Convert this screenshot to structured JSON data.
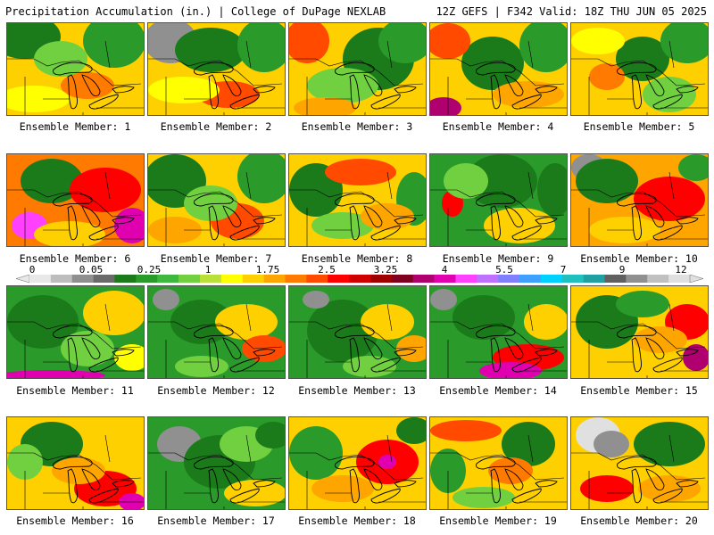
{
  "header": {
    "left_title": "Precipitation Accumulation (in.) | College of DuPage NEXLAB",
    "right_title": "12Z GEFS | F342 Valid: 18Z THU JUN 05 2025"
  },
  "colorbar": {
    "labels": [
      "0",
      "0.05",
      "0.25",
      "1",
      "1.75",
      "2.5",
      "3.25",
      "4",
      "5.5",
      "7",
      "9",
      "12"
    ],
    "colors": [
      "#e8e8e8",
      "#bdbdbd",
      "#8f8f8f",
      "#6a6a6a",
      "#1b7b1b",
      "#2a9a2a",
      "#3fb83f",
      "#70d040",
      "#b8e038",
      "#ffff00",
      "#ffd000",
      "#ffa500",
      "#ff7a00",
      "#ff4a00",
      "#ff0000",
      "#d00000",
      "#a00000",
      "#800020",
      "#b00070",
      "#e000b0",
      "#ff40ff",
      "#c070ff",
      "#8080ff",
      "#40a0ff",
      "#00d0ff",
      "#20c0c0",
      "#20a0a0",
      "#606060",
      "#909090",
      "#c0c0c0",
      "#e0e0e0"
    ]
  },
  "members": [
    {
      "label": "Ensemble Member: 1",
      "base": "#ffd000",
      "blobs": [
        [
          "#1b7b1b",
          20,
          15,
          40,
          25
        ],
        [
          "#2a9a2a",
          120,
          20,
          35,
          30
        ],
        [
          "#ff7a00",
          90,
          70,
          30,
          15
        ],
        [
          "#70d040",
          60,
          40,
          30,
          20
        ],
        [
          "#ffff00",
          30,
          85,
          40,
          15
        ]
      ]
    },
    {
      "label": "Ensemble Member: 2",
      "base": "#ffd000",
      "blobs": [
        [
          "#909090",
          25,
          20,
          30,
          25
        ],
        [
          "#1b7b1b",
          70,
          30,
          40,
          25
        ],
        [
          "#2a9a2a",
          130,
          25,
          30,
          30
        ],
        [
          "#ff4a00",
          90,
          80,
          35,
          15
        ],
        [
          "#ffff00",
          40,
          75,
          40,
          15
        ]
      ]
    },
    {
      "label": "Ensemble Member: 3",
      "base": "#ffd000",
      "blobs": [
        [
          "#ff4a00",
          20,
          20,
          25,
          25
        ],
        [
          "#1b7b1b",
          100,
          40,
          40,
          35
        ],
        [
          "#2a9a2a",
          130,
          20,
          30,
          25
        ],
        [
          "#70d040",
          60,
          70,
          40,
          20
        ],
        [
          "#ffa500",
          40,
          95,
          35,
          12
        ]
      ]
    },
    {
      "label": "Ensemble Member: 4",
      "base": "#ffd000",
      "blobs": [
        [
          "#1b7b1b",
          70,
          45,
          35,
          30
        ],
        [
          "#2a9a2a",
          130,
          25,
          30,
          30
        ],
        [
          "#ff4a00",
          20,
          20,
          25,
          20
        ],
        [
          "#b00070",
          15,
          95,
          20,
          12
        ],
        [
          "#ffa500",
          110,
          80,
          40,
          15
        ]
      ]
    },
    {
      "label": "Ensemble Member: 5",
      "base": "#ffd000",
      "blobs": [
        [
          "#1b7b1b",
          80,
          40,
          30,
          25
        ],
        [
          "#2a9a2a",
          130,
          20,
          30,
          25
        ],
        [
          "#ff7a00",
          40,
          60,
          20,
          15
        ],
        [
          "#70d040",
          110,
          80,
          30,
          20
        ],
        [
          "#ffff00",
          30,
          20,
          30,
          15
        ]
      ]
    },
    {
      "label": "Ensemble Member: 6",
      "base": "#ff7a00",
      "blobs": [
        [
          "#1b7b1b",
          50,
          30,
          35,
          25
        ],
        [
          "#ff0000",
          110,
          40,
          40,
          25
        ],
        [
          "#e000b0",
          140,
          80,
          20,
          20
        ],
        [
          "#ff40ff",
          25,
          80,
          20,
          15
        ],
        [
          "#ffd000",
          70,
          90,
          40,
          15
        ]
      ]
    },
    {
      "label": "Ensemble Member: 7",
      "base": "#ffd000",
      "blobs": [
        [
          "#1b7b1b",
          30,
          30,
          35,
          30
        ],
        [
          "#2a9a2a",
          130,
          25,
          30,
          30
        ],
        [
          "#ff4a00",
          100,
          75,
          30,
          20
        ],
        [
          "#70d040",
          70,
          55,
          30,
          20
        ],
        [
          "#ffa500",
          30,
          85,
          30,
          15
        ]
      ]
    },
    {
      "label": "Ensemble Member: 8",
      "base": "#ffd000",
      "blobs": [
        [
          "#1b7b1b",
          30,
          40,
          30,
          30
        ],
        [
          "#ff4a00",
          80,
          20,
          40,
          15
        ],
        [
          "#2a9a2a",
          140,
          50,
          20,
          30
        ],
        [
          "#70d040",
          60,
          80,
          35,
          15
        ],
        [
          "#ffa500",
          110,
          70,
          30,
          15
        ]
      ]
    },
    {
      "label": "Ensemble Member: 9",
      "base": "#2a9a2a",
      "blobs": [
        [
          "#1b7b1b",
          80,
          30,
          40,
          30
        ],
        [
          "#ff0000",
          25,
          55,
          12,
          15
        ],
        [
          "#ffd000",
          100,
          80,
          40,
          20
        ],
        [
          "#70d040",
          40,
          30,
          25,
          20
        ],
        [
          "#1b7b1b",
          140,
          40,
          20,
          30
        ]
      ]
    },
    {
      "label": "Ensemble Member: 10",
      "base": "#ffa500",
      "blobs": [
        [
          "#909090",
          20,
          15,
          20,
          15
        ],
        [
          "#1b7b1b",
          40,
          30,
          35,
          25
        ],
        [
          "#ff0000",
          110,
          50,
          40,
          25
        ],
        [
          "#2a9a2a",
          140,
          15,
          20,
          15
        ],
        [
          "#ffd000",
          60,
          85,
          40,
          15
        ]
      ]
    },
    {
      "label": "Ensemble Member: 11",
      "base": "#2a9a2a",
      "blobs": [
        [
          "#1b7b1b",
          40,
          40,
          40,
          30
        ],
        [
          "#ffd000",
          120,
          30,
          35,
          25
        ],
        [
          "#70d040",
          90,
          70,
          30,
          20
        ],
        [
          "#e000b0",
          50,
          100,
          60,
          6
        ],
        [
          "#ffff00",
          140,
          80,
          20,
          15
        ]
      ]
    },
    {
      "label": "Ensemble Member: 12",
      "base": "#2a9a2a",
      "blobs": [
        [
          "#909090",
          20,
          15,
          15,
          12
        ],
        [
          "#1b7b1b",
          60,
          40,
          35,
          25
        ],
        [
          "#ffd000",
          110,
          40,
          35,
          20
        ],
        [
          "#ff4a00",
          130,
          70,
          25,
          15
        ],
        [
          "#70d040",
          60,
          90,
          30,
          12
        ]
      ]
    },
    {
      "label": "Ensemble Member: 13",
      "base": "#2a9a2a",
      "blobs": [
        [
          "#1b7b1b",
          60,
          50,
          40,
          35
        ],
        [
          "#ffd000",
          110,
          40,
          30,
          20
        ],
        [
          "#ffa500",
          140,
          70,
          20,
          15
        ],
        [
          "#909090",
          30,
          15,
          15,
          10
        ],
        [
          "#70d040",
          90,
          90,
          30,
          12
        ]
      ]
    },
    {
      "label": "Ensemble Member: 14",
      "base": "#2a9a2a",
      "blobs": [
        [
          "#909090",
          15,
          15,
          15,
          12
        ],
        [
          "#1b7b1b",
          60,
          35,
          35,
          25
        ],
        [
          "#ff0000",
          110,
          80,
          40,
          15
        ],
        [
          "#e000b0",
          90,
          95,
          35,
          10
        ],
        [
          "#ffd000",
          130,
          40,
          25,
          20
        ]
      ]
    },
    {
      "label": "Ensemble Member: 15",
      "base": "#ffd000",
      "blobs": [
        [
          "#1b7b1b",
          40,
          40,
          35,
          30
        ],
        [
          "#ff0000",
          130,
          40,
          25,
          20
        ],
        [
          "#2a9a2a",
          80,
          20,
          30,
          15
        ],
        [
          "#b00070",
          140,
          80,
          15,
          15
        ],
        [
          "#ffa500",
          100,
          60,
          30,
          15
        ]
      ]
    },
    {
      "label": "Ensemble Member: 16",
      "base": "#ffd000",
      "blobs": [
        [
          "#1b7b1b",
          50,
          30,
          35,
          25
        ],
        [
          "#ff0000",
          110,
          80,
          35,
          20
        ],
        [
          "#e000b0",
          140,
          95,
          15,
          10
        ],
        [
          "#70d040",
          20,
          50,
          20,
          20
        ],
        [
          "#ffa500",
          80,
          60,
          30,
          15
        ]
      ]
    },
    {
      "label": "Ensemble Member: 17",
      "base": "#2a9a2a",
      "blobs": [
        [
          "#909090",
          35,
          30,
          25,
          20
        ],
        [
          "#1b7b1b",
          80,
          50,
          40,
          30
        ],
        [
          "#70d040",
          110,
          30,
          30,
          20
        ],
        [
          "#ffd000",
          120,
          85,
          35,
          15
        ],
        [
          "#1b7b1b",
          140,
          20,
          20,
          15
        ]
      ]
    },
    {
      "label": "Ensemble Member: 18",
      "base": "#ffd000",
      "blobs": [
        [
          "#2a9a2a",
          30,
          40,
          30,
          30
        ],
        [
          "#ff0000",
          110,
          50,
          35,
          25
        ],
        [
          "#e000b0",
          110,
          50,
          10,
          8
        ],
        [
          "#1b7b1b",
          140,
          15,
          20,
          15
        ],
        [
          "#ffa500",
          60,
          80,
          35,
          15
        ]
      ]
    },
    {
      "label": "Ensemble Member: 19",
      "base": "#ffd000",
      "blobs": [
        [
          "#ff4a00",
          40,
          15,
          40,
          12
        ],
        [
          "#2a9a2a",
          20,
          60,
          20,
          25
        ],
        [
          "#1b7b1b",
          110,
          30,
          30,
          25
        ],
        [
          "#ff7a00",
          90,
          60,
          25,
          15
        ],
        [
          "#70d040",
          60,
          90,
          35,
          12
        ]
      ]
    },
    {
      "label": "Ensemble Member: 20",
      "base": "#ffd000",
      "blobs": [
        [
          "#e0e0e0",
          30,
          20,
          25,
          20
        ],
        [
          "#909090",
          45,
          30,
          20,
          15
        ],
        [
          "#1b7b1b",
          110,
          30,
          40,
          25
        ],
        [
          "#ff0000",
          40,
          80,
          30,
          15
        ],
        [
          "#ffa500",
          110,
          80,
          35,
          15
        ]
      ]
    }
  ]
}
